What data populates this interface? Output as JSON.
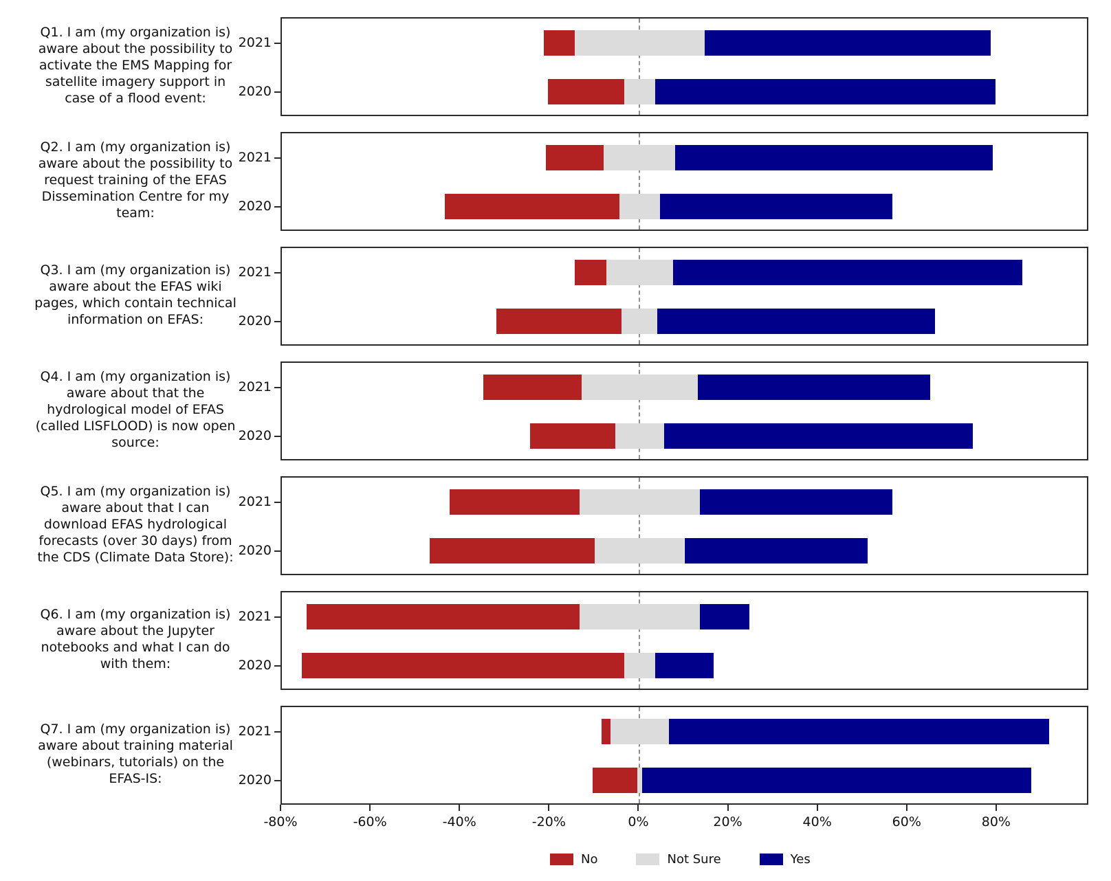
{
  "chart_data": {
    "type": "bar",
    "variant": "horizontal-diverging-stacked",
    "centering": "not_sure_split_evenly_across_zero",
    "title": "",
    "xlabel": "",
    "ylabel": "",
    "x_axis": {
      "min": -80,
      "max": 100,
      "ticks": [
        -80,
        -60,
        -40,
        -20,
        0,
        20,
        40,
        60,
        80
      ],
      "tick_labels": [
        "-80%",
        "-60%",
        "-40%",
        "-20%",
        "0%",
        "20%",
        "40%",
        "60%",
        "80%"
      ],
      "grid": false,
      "zero_line_style": "dashed",
      "zero_line_color": "#8f8f8f"
    },
    "colors": {
      "no": "#B22222",
      "not_sure": "#DCDCDC",
      "yes": "#00008B"
    },
    "legend": [
      {
        "label": "No",
        "color": "#B22222"
      },
      {
        "label": "Not Sure",
        "color": "#DCDCDC"
      },
      {
        "label": "Yes",
        "color": "#00008B"
      }
    ],
    "legend_position": "bottom-center",
    "questions": [
      {
        "label": "Q1. I am (my organization is)\naware about the possibility to\nactivate the EMS Mapping for\nsatellite imagery support in\ncase of a flood event:",
        "rows": [
          {
            "year": "2021",
            "no": 7,
            "not_sure": 29,
            "yes": 64
          },
          {
            "year": "2020",
            "no": 17,
            "not_sure": 7,
            "yes": 76
          }
        ]
      },
      {
        "label": "Q2. I am (my organization is)\naware about the possibility to\nrequest training of the EFAS\nDissemination Centre for my\nteam:",
        "rows": [
          {
            "year": "2021",
            "no": 13,
            "not_sure": 16,
            "yes": 71
          },
          {
            "year": "2020",
            "no": 39,
            "not_sure": 9,
            "yes": 52
          }
        ]
      },
      {
        "label": "Q3. I am (my organization is)\naware about the EFAS wiki\npages, which contain technical\ninformation on EFAS:",
        "rows": [
          {
            "year": "2021",
            "no": 7,
            "not_sure": 15,
            "yes": 78
          },
          {
            "year": "2020",
            "no": 28,
            "not_sure": 8,
            "yes": 62
          }
        ]
      },
      {
        "label": "Q4. I am (my organization is)\naware about that the\nhydrological model of EFAS\n(called LISFLOOD) is now open\nsource:",
        "rows": [
          {
            "year": "2021",
            "no": 22,
            "not_sure": 26,
            "yes": 52
          },
          {
            "year": "2020",
            "no": 19,
            "not_sure": 11,
            "yes": 69
          }
        ]
      },
      {
        "label": "Q5. I am (my organization is)\naware about that I can\ndownload EFAS hydrological\nforecasts (over 30 days) from\nthe CDS (Climate Data Store):",
        "rows": [
          {
            "year": "2021",
            "no": 29,
            "not_sure": 27,
            "yes": 43
          },
          {
            "year": "2020",
            "no": 37,
            "not_sure": 20,
            "yes": 41
          }
        ]
      },
      {
        "label": "Q6. I am (my organization is)\naware about the Jupyter\nnotebooks and what I can do\nwith them:",
        "rows": [
          {
            "year": "2021",
            "no": 61,
            "not_sure": 27,
            "yes": 11
          },
          {
            "year": "2020",
            "no": 72,
            "not_sure": 7,
            "yes": 13
          }
        ]
      },
      {
        "label": "Q7. I am (my organization is)\naware about training material\n(webinars, tutorials) on the\nEFAS-IS:",
        "rows": [
          {
            "year": "2021",
            "no": 2,
            "not_sure": 13,
            "yes": 85
          },
          {
            "year": "2020",
            "no": 10,
            "not_sure": 1,
            "yes": 87
          }
        ]
      }
    ]
  }
}
